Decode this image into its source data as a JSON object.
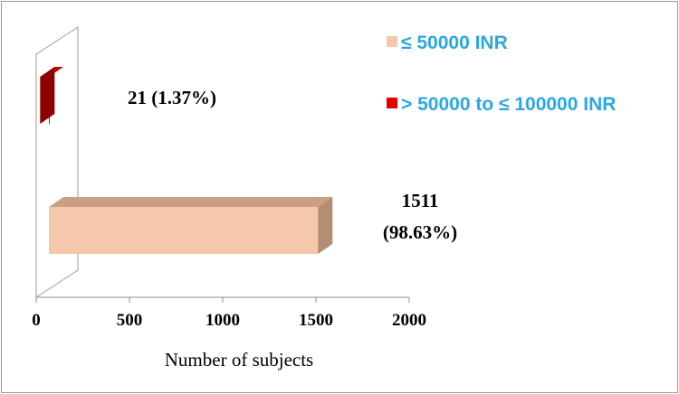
{
  "chart_data": {
    "type": "bar",
    "orientation": "horizontal",
    "style": "3d",
    "categories": [
      "> 50000  to  ≤ 100000  INR",
      "≤ 50000  INR"
    ],
    "values": [
      21,
      1511
    ],
    "data_labels": [
      [
        "21 (1.37%)"
      ],
      [
        "1511",
        "(98.63%)"
      ]
    ],
    "series_colors": [
      "#e40000",
      "#f6c7a8"
    ],
    "series_side_colors": [
      "#8e0000",
      "#b38e74"
    ],
    "series_top_colors": [
      "#c80000",
      "#c9a084"
    ],
    "xlabel": "Number of subjects",
    "ylabel": "",
    "xlim": [
      0,
      2000
    ],
    "xticks": [
      0,
      500,
      1000,
      1500,
      2000
    ],
    "grid": false,
    "legend": {
      "position": "top-right",
      "entries": [
        {
          "label": "≤ 50000  INR",
          "color": "#f6c7a8"
        },
        {
          "label": "> 50000  to  ≤ 100000  INR",
          "color": "#e40000"
        }
      ]
    }
  }
}
